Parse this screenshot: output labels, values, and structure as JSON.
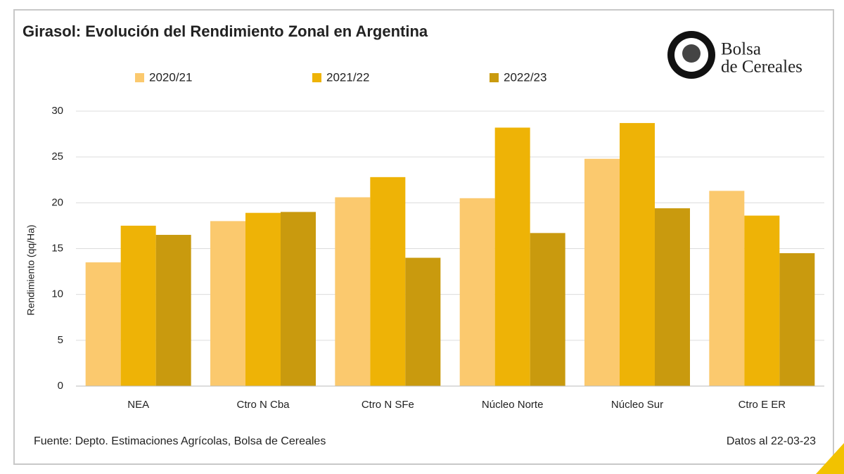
{
  "chart_data": {
    "type": "bar",
    "title": "Girasol: Evolución del Rendimiento Zonal en Argentina",
    "y_label": "Rendimiento (qq/Ha)",
    "categories": [
      "NEA",
      "Ctro N Cba",
      "Ctro N SFe",
      "Núcleo Norte",
      "Núcleo Sur",
      "Ctro E ER"
    ],
    "series": [
      {
        "name": "2020/21",
        "color": "#fbc96e",
        "values": [
          13.5,
          18.0,
          20.6,
          20.5,
          24.8,
          21.3
        ]
      },
      {
        "name": "2021/22",
        "color": "#eeb306",
        "values": [
          17.5,
          18.9,
          22.8,
          28.2,
          28.7,
          18.6
        ]
      },
      {
        "name": "2022/23",
        "color": "#c99a0e",
        "values": [
          16.5,
          19.0,
          14.0,
          16.7,
          19.4,
          14.5
        ]
      }
    ],
    "ylim": [
      0,
      30
    ],
    "yticks": [
      0,
      5,
      10,
      15,
      20,
      25,
      30
    ],
    "grid": true,
    "legend": "top",
    "source": "Fuente: Depto. Estimaciones Agrícolas, Bolsa de Cereales",
    "date_note": "Datos al 22-03-23",
    "logo": {
      "line1": "Bolsa",
      "line2": "de Cereales"
    }
  }
}
